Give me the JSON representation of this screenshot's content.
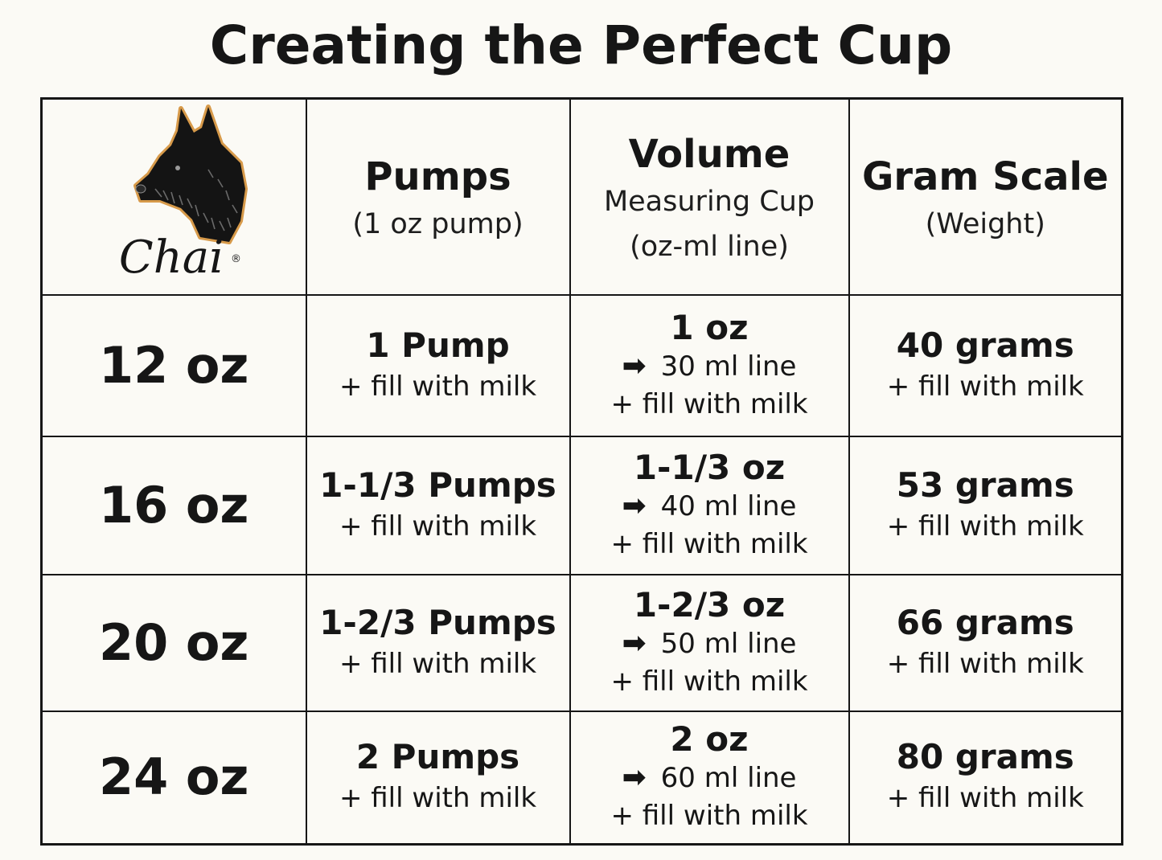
{
  "title": "Creating the Perfect Cup",
  "logo": {
    "text": "Chai",
    "registered": "®",
    "icon": "scottish-terrier-head-icon"
  },
  "headers": [
    {
      "main": "Pumps",
      "sub": [
        "(1 oz pump)"
      ]
    },
    {
      "main": "Volume",
      "sub": [
        "Measuring Cup",
        "(oz-ml line)"
      ]
    },
    {
      "main": "Gram Scale",
      "sub": [
        "(Weight)"
      ]
    }
  ],
  "arrow_icon": "right-arrow-icon",
  "arrow_glyph": "➡",
  "rows": [
    {
      "size": "12 oz",
      "pumps": {
        "amount": "1 Pump",
        "fill": "+ fill with milk"
      },
      "volume": {
        "amount": "1 oz",
        "line": "30 ml line",
        "fill": "+ fill with milk"
      },
      "grams": {
        "amount": "40 grams",
        "fill": "+ fill with milk"
      }
    },
    {
      "size": "16 oz",
      "pumps": {
        "amount": "1-1/3 Pumps",
        "fill": "+ fill with milk"
      },
      "volume": {
        "amount": "1-1/3 oz",
        "line": "40 ml line",
        "fill": "+ fill with milk"
      },
      "grams": {
        "amount": "53 grams",
        "fill": "+ fill with milk"
      }
    },
    {
      "size": "20 oz",
      "pumps": {
        "amount": "1-2/3 Pumps",
        "fill": "+ fill with milk"
      },
      "volume": {
        "amount": "1-2/3 oz",
        "line": "50 ml line",
        "fill": "+ fill with milk"
      },
      "grams": {
        "amount": "66 grams",
        "fill": "+ fill with milk"
      }
    },
    {
      "size": "24 oz",
      "pumps": {
        "amount": "2 Pumps",
        "fill": "+ fill with milk"
      },
      "volume": {
        "amount": "2 oz",
        "line": "60 ml line",
        "fill": "+ fill with milk"
      },
      "grams": {
        "amount": "80 grams",
        "fill": "+ fill with milk"
      }
    }
  ]
}
